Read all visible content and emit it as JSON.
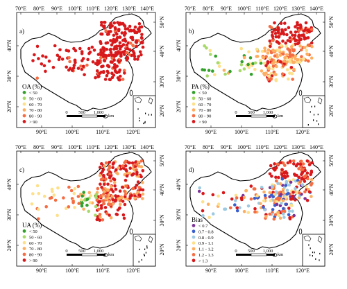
{
  "figure": {
    "panels": [
      {
        "id": "a",
        "letter": "a)",
        "legend_title": "OA (%)",
        "top_ticks": [
          "70°E",
          "80°E",
          "90°E",
          "100°E",
          "110°E",
          "120°E",
          "130°E",
          "140°E"
        ],
        "right_ticks": [
          "50°N",
          "40°N",
          "30°N",
          "20°N"
        ],
        "left_ticks": [
          "40°N",
          "30°N",
          "20°N"
        ],
        "bottom_ticks": [
          "90°E",
          "100°E",
          "110°E",
          "120°E"
        ],
        "legend": [
          {
            "label": "< 50",
            "color": "#33a02c"
          },
          {
            "label": "50 - 60",
            "color": "#a6d96a"
          },
          {
            "label": "60 - 70",
            "color": "#fee08b"
          },
          {
            "label": "70 - 80",
            "color": "#fdae61"
          },
          {
            "label": "80 - 90",
            "color": "#f46d43"
          },
          {
            "label": "> 90",
            "color": "#d7191c"
          }
        ],
        "scale_labels": [
          "0",
          "500",
          "1,000"
        ],
        "scale_unit": "km"
      },
      {
        "id": "b",
        "letter": "b)",
        "legend_title": "PA (%)",
        "top_ticks": [
          "70°E",
          "80°E",
          "90°E",
          "100°E",
          "110°E",
          "120°E",
          "130°E",
          "140°E"
        ],
        "right_ticks": [
          "50°N",
          "40°N",
          "30°N",
          "20°N"
        ],
        "left_ticks": [
          "40°N",
          "30°N",
          "20°N"
        ],
        "bottom_ticks": [
          "90°E",
          "100°E",
          "110°E",
          "120°E"
        ],
        "legend": [
          {
            "label": "< 50",
            "color": "#33a02c"
          },
          {
            "label": "50 - 60",
            "color": "#a6d96a"
          },
          {
            "label": "60 - 70",
            "color": "#fee08b"
          },
          {
            "label": "70 - 80",
            "color": "#fdae61"
          },
          {
            "label": "80 - 90",
            "color": "#f46d43"
          },
          {
            "label": "> 90",
            "color": "#d7191c"
          }
        ],
        "scale_labels": [
          "0",
          "500",
          "1,000"
        ],
        "scale_unit": "km"
      },
      {
        "id": "c",
        "letter": "c)",
        "legend_title": "UA (%)",
        "top_ticks": [
          "70°E",
          "80°E",
          "90°E",
          "100°E",
          "110°E",
          "120°E",
          "130°E",
          "140°E"
        ],
        "right_ticks": [
          "50°N",
          "40°N",
          "30°N",
          "20°N"
        ],
        "left_ticks": [
          "40°N",
          "30°N",
          "20°N"
        ],
        "bottom_ticks": [
          "90°E",
          "100°E",
          "110°E",
          "120°E"
        ],
        "legend": [
          {
            "label": "< 50",
            "color": "#33a02c"
          },
          {
            "label": "50 - 60",
            "color": "#a6d96a"
          },
          {
            "label": "60 - 70",
            "color": "#fee08b"
          },
          {
            "label": "70 - 80",
            "color": "#fdae61"
          },
          {
            "label": "80 - 90",
            "color": "#f46d43"
          },
          {
            "label": "> 90",
            "color": "#d7191c"
          }
        ],
        "scale_labels": [
          "0",
          "500",
          "1,000"
        ],
        "scale_unit": "km"
      },
      {
        "id": "d",
        "letter": "d)",
        "legend_title": "Bias",
        "top_ticks": [
          "70°E",
          "80°E",
          "90°E",
          "100°E",
          "110°E",
          "120°E",
          "130°E",
          "140°E"
        ],
        "right_ticks": [
          "50°N",
          "40°N",
          "30°N",
          "20°N"
        ],
        "left_ticks": [
          "40°N",
          "30°N",
          "20°N"
        ],
        "bottom_ticks": [
          "90°E",
          "100°E",
          "110°E",
          "120°E"
        ],
        "legend": [
          {
            "label": "< 0.7",
            "color": "#7b3294"
          },
          {
            "label": "0.7 - 0.8",
            "color": "#3a5fcd"
          },
          {
            "label": "0.8 - 0.9",
            "color": "#9ecae1"
          },
          {
            "label": "0.9 - 1.1",
            "color": "#fee08b"
          },
          {
            "label": "1.1 - 1.2",
            "color": "#fdae61"
          },
          {
            "label": "1.2 - 1.3",
            "color": "#f46d43"
          },
          {
            "label": "> 1.3",
            "color": "#d7191c"
          }
        ],
        "scale_labels": [
          "0",
          "500",
          "1,000"
        ],
        "scale_unit": "km"
      }
    ]
  }
}
